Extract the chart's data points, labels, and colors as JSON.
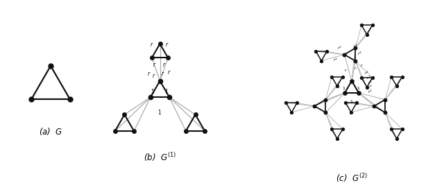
{
  "background": "#ffffff",
  "node_color": "#111111",
  "edge_color_dark": "#111111",
  "edge_color_light": "#aaaaaa",
  "label_a": "(a)  $G$",
  "label_b": "(b)  $G^{(1)}$",
  "label_c": "(c)  $G^{(2)}$",
  "label_fontsize": 8.5
}
